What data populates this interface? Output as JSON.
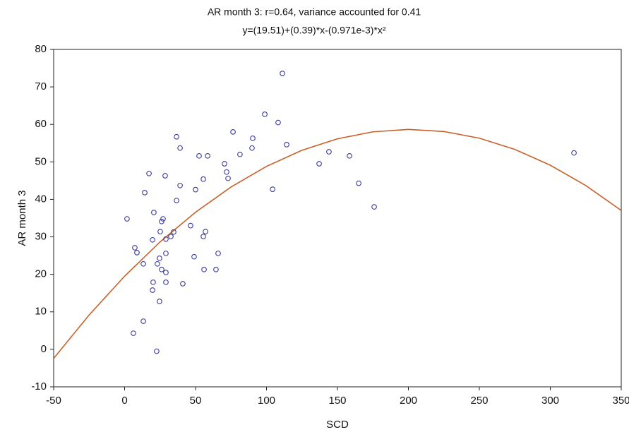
{
  "chart_data": {
    "type": "scatter",
    "title": "AR month 3: r=0.64, variance accounted for 0.41",
    "subtitle": "y=(19.51)+(0.39)*x-(0.971e-3)*x²",
    "x_label": "SCD",
    "y_label": "AR month 3",
    "xlim": [
      -50,
      350
    ],
    "xticks": [
      -50,
      0,
      50,
      100,
      150,
      200,
      250,
      300,
      350
    ],
    "ylim": [
      -10,
      80
    ],
    "yticks": [
      -10,
      0,
      10,
      20,
      30,
      40,
      50,
      60,
      70,
      80
    ],
    "grid": false,
    "series": [
      {
        "kind": "scatter",
        "color": "#3a3a9a",
        "x": [
          1.7,
          7.2,
          8.7,
          6.2,
          13.2,
          13.2,
          14.2,
          17.2,
          19.7,
          20.6,
          20.1,
          19.7,
          22.6,
          23.1,
          24.6,
          25.1,
          26.1,
          27.1,
          24.6,
          26.1,
          29.1,
          29.1,
          29.1,
          29.1,
          28.6,
          32.6,
          34.6,
          36.6,
          36.6,
          39.1,
          39.1,
          41.0,
          46.5,
          49.0,
          50.0,
          52.5,
          58.5,
          55.5,
          55.5,
          57.0,
          56.0,
          64.4,
          65.9,
          70.4,
          71.9,
          72.9,
          76.4,
          81.3,
          89.8,
          90.3,
          98.8,
          104.3,
          108.2,
          111.2,
          114.2,
          137.1,
          144.0,
          158.5,
          165.0,
          175.9,
          316.7
        ],
        "values": [
          34.8,
          27.1,
          25.8,
          4.3,
          7.5,
          22.8,
          41.8,
          46.9,
          29.2,
          36.5,
          17.9,
          15.8,
          -0.5,
          22.8,
          24.3,
          31.4,
          34.1,
          34.8,
          12.8,
          21.3,
          20.5,
          17.9,
          25.6,
          29.4,
          46.3,
          30.1,
          31.3,
          56.7,
          39.7,
          53.7,
          43.7,
          17.5,
          33.0,
          24.7,
          42.6,
          51.6,
          51.6,
          45.4,
          30.1,
          31.4,
          21.3,
          21.3,
          25.6,
          49.5,
          47.3,
          45.6,
          58.0,
          52.0,
          53.7,
          56.3,
          62.7,
          42.7,
          60.5,
          73.6,
          54.6,
          49.5,
          52.7,
          51.6,
          44.3,
          38.0,
          52.4
        ]
      },
      {
        "kind": "line",
        "color": "#c8602a",
        "x": [
          -50,
          -25,
          0,
          25,
          50,
          75,
          100,
          125,
          150,
          175,
          200,
          225,
          250,
          275,
          300,
          325,
          350
        ],
        "values": [
          -2.42,
          9.15,
          19.51,
          28.65,
          36.58,
          43.3,
          48.8,
          53.09,
          56.16,
          58.02,
          58.67,
          58.1,
          56.32,
          53.33,
          49.12,
          43.7,
          37.06
        ]
      }
    ]
  }
}
